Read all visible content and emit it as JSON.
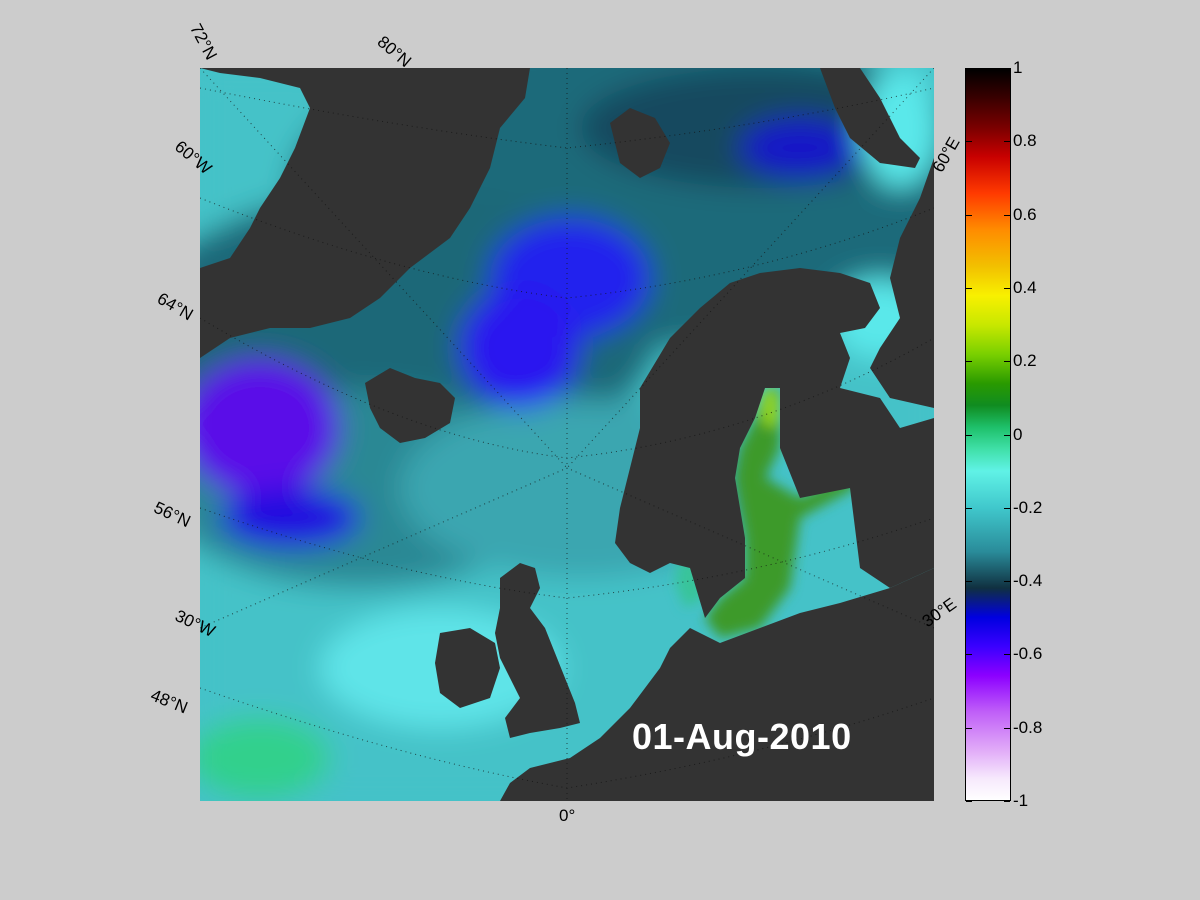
{
  "map": {
    "date_label": "01-Aug-2010",
    "lat_labels": [
      "72°N",
      "80°N",
      "64°N",
      "56°N",
      "48°N"
    ],
    "lon_labels": [
      "60°W",
      "30°W",
      "0°",
      "30°E",
      "60°E"
    ],
    "colors": {
      "land": "#333333",
      "ocean_base": "#44c2c8",
      "background": "#cccccc"
    }
  },
  "colorbar": {
    "ticks": [
      "1",
      "0.8",
      "0.6",
      "0.4",
      "0.2",
      "0",
      "-0.2",
      "-0.4",
      "-0.6",
      "-0.8",
      "-1"
    ],
    "range": [
      -1,
      1
    ]
  }
}
